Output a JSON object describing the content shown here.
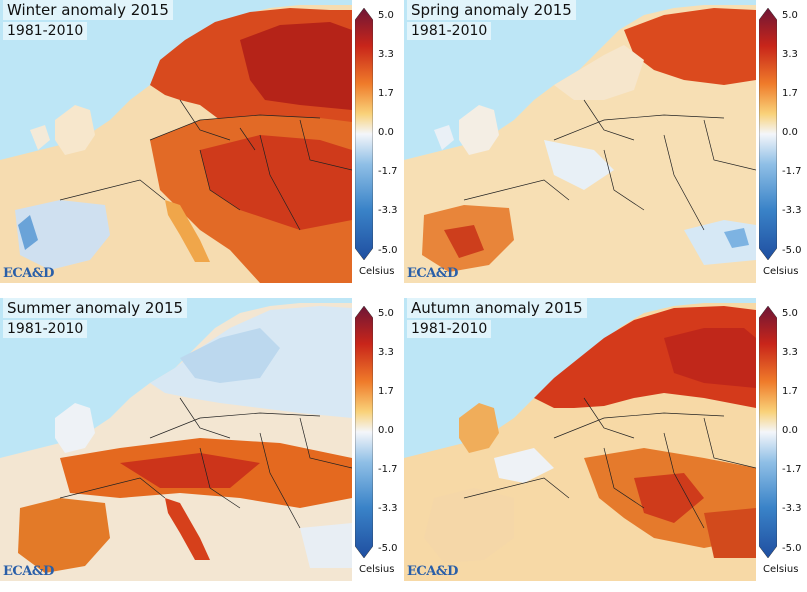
{
  "panels": [
    {
      "id": "winter",
      "title": "Winter anomaly 2015",
      "period": "1981-2010",
      "logo": "ECA&D",
      "anomaly": "warm-northeast"
    },
    {
      "id": "spring",
      "title": "Spring anomaly 2015",
      "period": "1981-2010",
      "logo": "ECA&D",
      "anomaly": "mild-warm"
    },
    {
      "id": "summer",
      "title": "Summer anomaly 2015",
      "period": "1981-2010",
      "logo": "ECA&D",
      "anomaly": "warm-south"
    },
    {
      "id": "autumn",
      "title": "Autumn anomaly 2015",
      "period": "1981-2010",
      "logo": "ECA&D",
      "anomaly": "warm-north-southeast"
    }
  ],
  "colorbar": {
    "ticks": [
      "5.0",
      "3.3",
      "1.7",
      "0.0",
      "-1.7",
      "-3.3",
      "-5.0"
    ],
    "unit": "Celsius",
    "min": -5.0,
    "max": 5.0,
    "colors": [
      "#1f4ea0",
      "#3a83c8",
      "#8fbfe6",
      "#f4f6fa",
      "#f9d27a",
      "#ef7b2a",
      "#c8251a",
      "#6e1636"
    ]
  },
  "colors": {
    "sea": "#bde6f6",
    "land_neutral": "#f6efe4",
    "border": "#222222"
  }
}
